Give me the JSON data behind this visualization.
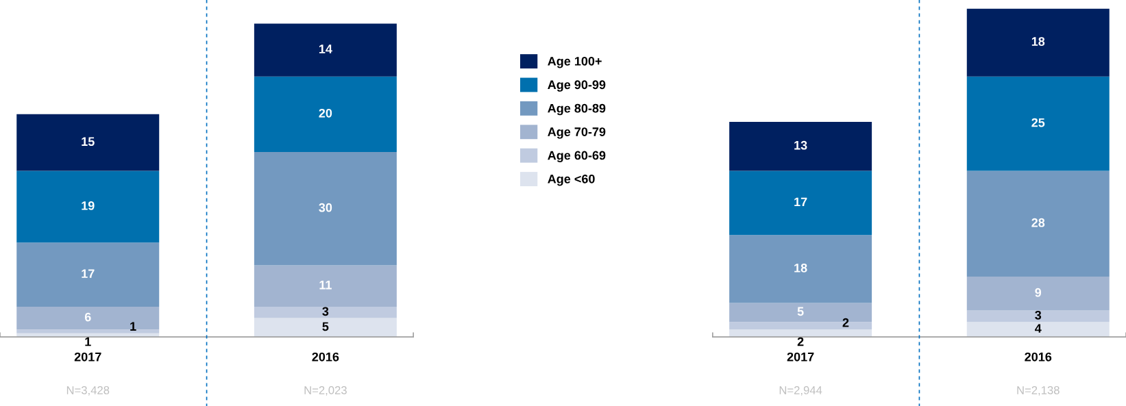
{
  "chart_data": {
    "type": "bar",
    "stacked": true,
    "data_labels": true,
    "categories": [
      "2017",
      "2016",
      null,
      "2017",
      "2016"
    ],
    "legend": "center",
    "grid": false,
    "series": [
      {
        "name": "Age <60",
        "color": "#dde3ee",
        "values": [
          1,
          5,
          null,
          2,
          4
        ]
      },
      {
        "name": "Age 60-69",
        "color": "#c0cbe0",
        "values": [
          1,
          3,
          null,
          2,
          3
        ]
      },
      {
        "name": "Age 70-79",
        "color": "#a2b4d0",
        "values": [
          6,
          11,
          null,
          5,
          9
        ]
      },
      {
        "name": "Age 80-89",
        "color": "#7399c0",
        "values": [
          17,
          30,
          null,
          18,
          28
        ]
      },
      {
        "name": "Age 90-99",
        "color": "#0070ae",
        "values": [
          19,
          20,
          null,
          17,
          25
        ]
      },
      {
        "name": "Age 100+",
        "color": "#002060",
        "values": [
          15,
          14,
          null,
          13,
          18
        ]
      }
    ],
    "annotations": [
      "N=3,428",
      "N=2,023",
      "N=2,944",
      "N=2,138"
    ]
  }
}
